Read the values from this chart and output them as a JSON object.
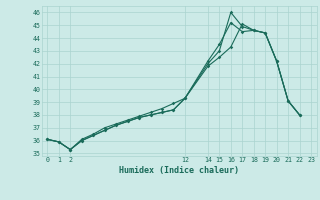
{
  "xlabel": "Humidex (Indice chaleur)",
  "bg_color": "#cceae7",
  "line_color": "#1a6b5a",
  "grid_color": "#aad4cf",
  "ylim": [
    34.8,
    46.5
  ],
  "xlim": [
    -0.5,
    23.5
  ],
  "yticks": [
    35,
    36,
    37,
    38,
    39,
    40,
    41,
    42,
    43,
    44,
    45,
    46
  ],
  "xticks": [
    0,
    1,
    2,
    12,
    14,
    15,
    16,
    17,
    18,
    19,
    20,
    21,
    22,
    23
  ],
  "xtick_labels": [
    "0",
    "1",
    "2",
    "12",
    "14",
    "15",
    "16",
    "17",
    "18",
    "19",
    "20",
    "21",
    "22",
    "23"
  ],
  "series": [
    [
      [
        0,
        36.1
      ],
      [
        1,
        35.9
      ],
      [
        2,
        35.3
      ],
      [
        3,
        36.1
      ],
      [
        4,
        36.5
      ],
      [
        5,
        37.0
      ],
      [
        6,
        37.3
      ],
      [
        7,
        37.6
      ],
      [
        8,
        37.9
      ],
      [
        9,
        38.2
      ],
      [
        10,
        38.5
      ],
      [
        11,
        38.9
      ],
      [
        12,
        39.3
      ],
      [
        14,
        42.2
      ],
      [
        15,
        43.5
      ],
      [
        16,
        45.2
      ],
      [
        17,
        44.5
      ],
      [
        18,
        44.6
      ],
      [
        19,
        44.4
      ],
      [
        20,
        42.2
      ],
      [
        21,
        39.1
      ],
      [
        22,
        38.0
      ]
    ],
    [
      [
        0,
        36.1
      ],
      [
        1,
        35.9
      ],
      [
        2,
        35.3
      ],
      [
        3,
        36.0
      ],
      [
        4,
        36.4
      ],
      [
        5,
        36.8
      ],
      [
        6,
        37.2
      ],
      [
        7,
        37.5
      ],
      [
        8,
        37.8
      ],
      [
        9,
        38.0
      ],
      [
        10,
        38.2
      ],
      [
        11,
        38.4
      ],
      [
        12,
        39.3
      ],
      [
        14,
        41.8
      ],
      [
        15,
        42.5
      ],
      [
        16,
        43.3
      ],
      [
        17,
        45.1
      ],
      [
        18,
        44.6
      ],
      [
        19,
        44.4
      ],
      [
        20,
        42.2
      ],
      [
        21,
        39.1
      ],
      [
        22,
        38.0
      ]
    ],
    [
      [
        0,
        36.1
      ],
      [
        1,
        35.9
      ],
      [
        2,
        35.3
      ],
      [
        3,
        36.0
      ],
      [
        4,
        36.4
      ],
      [
        5,
        36.8
      ],
      [
        6,
        37.2
      ],
      [
        7,
        37.5
      ],
      [
        8,
        37.8
      ],
      [
        9,
        38.0
      ],
      [
        10,
        38.2
      ],
      [
        11,
        38.4
      ],
      [
        12,
        39.3
      ],
      [
        14,
        42.0
      ],
      [
        15,
        43.0
      ],
      [
        16,
        46.0
      ],
      [
        17,
        44.9
      ],
      [
        18,
        44.6
      ],
      [
        19,
        44.4
      ],
      [
        20,
        42.2
      ],
      [
        21,
        39.1
      ],
      [
        22,
        38.0
      ]
    ]
  ]
}
